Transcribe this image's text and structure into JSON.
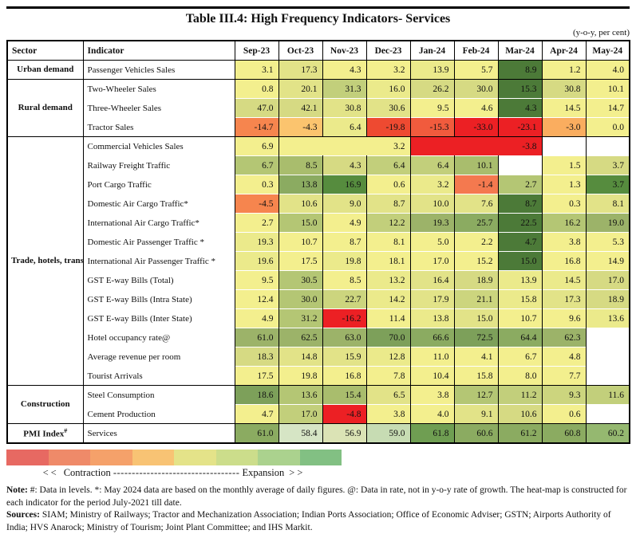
{
  "chart_data": {
    "type": "heatmap",
    "title": "Table III.4: High Frequency Indicators- Services",
    "unit": "(y-o-y, per cent)",
    "row_header_columns": [
      "Sector",
      "Indicator"
    ],
    "months": [
      "Sep-23",
      "Oct-23",
      "Nov-23",
      "Dec-23",
      "Jan-24",
      "Feb-24",
      "Mar-24",
      "Apr-24",
      "May-24"
    ],
    "palette": {
      "W": "#ffffff",
      "Y": "#f3ef8e",
      "Y2": "#ebea8b",
      "OL1": "#e2e388",
      "OL2": "#d6da83",
      "OL3": "#ccd57e",
      "OG1": "#c2cf7b",
      "OG2": "#b4c674",
      "OG3": "#a9bd6d",
      "GO": "#9cb369",
      "MG": "#8bab61",
      "MG2": "#95b870",
      "G1": "#7da05a",
      "G2": "#6f9e52",
      "SG": "#568c3e",
      "DG": "#4c7a38",
      "PG1": "#d6e5c5",
      "PG2": "#dbe3b5",
      "PG3": "#c7dcb3",
      "RED": "#ec2024",
      "OR1": "#ee4a31",
      "OR2": "#f15b3d",
      "ORG": "#f6854e",
      "SAL": "#f4794f",
      "AMB": "#fbc46e",
      "AMB2": "#faad5f"
    },
    "groups": [
      {
        "sector": {
          "name": "Urban demand"
        },
        "rows": [
          {
            "indicator": "Passenger Vehicles Sales",
            "cells": [
              [
                "3.1",
                "Y"
              ],
              [
                "17.3",
                "OL1"
              ],
              [
                "4.3",
                "Y"
              ],
              [
                "3.2",
                "Y"
              ],
              [
                "13.9",
                "Y2"
              ],
              [
                "5.7",
                "Y"
              ],
              [
                "8.9",
                "DG"
              ],
              [
                "1.2",
                "Y"
              ],
              [
                "4.0",
                "Y"
              ]
            ]
          }
        ]
      },
      {
        "sector": {
          "name": "Rural demand"
        },
        "rows": [
          {
            "indicator": "Two-Wheeler Sales",
            "cells": [
              [
                "0.8",
                "Y"
              ],
              [
                "20.1",
                "OL1"
              ],
              [
                "31.3",
                "OG1"
              ],
              [
                "16.0",
                "Y2"
              ],
              [
                "26.2",
                "OL2"
              ],
              [
                "30.0",
                "OL2"
              ],
              [
                "15.3",
                "DG"
              ],
              [
                "30.8",
                "OL2"
              ],
              [
                "10.1",
                "Y"
              ]
            ]
          },
          {
            "indicator": "Three-Wheeler Sales",
            "cells": [
              [
                "47.0",
                "OL2"
              ],
              [
                "42.1",
                "OL2"
              ],
              [
                "30.8",
                "OL1"
              ],
              [
                "30.6",
                "OL1"
              ],
              [
                "9.5",
                "Y"
              ],
              [
                "4.6",
                "Y"
              ],
              [
                "4.3",
                "DG"
              ],
              [
                "14.5",
                "Y"
              ],
              [
                "14.7",
                "Y"
              ]
            ]
          },
          {
            "indicator": "Tractor Sales",
            "cells": [
              [
                "-14.7",
                "ORG"
              ],
              [
                "-4.3",
                "AMB"
              ],
              [
                "6.4",
                "Y2"
              ],
              [
                "-19.8",
                "OR1"
              ],
              [
                "-15.3",
                "OR2"
              ],
              [
                "-33.0",
                "RED"
              ],
              [
                "-23.1",
                "RED"
              ],
              [
                "-3.0",
                "AMB2"
              ],
              [
                "0.0",
                "Y"
              ]
            ]
          }
        ]
      },
      {
        "sector": {
          "name": "Trade, hotels, transport, communication"
        },
        "rows": [
          {
            "indicator": "Commercial Vehicles Sales",
            "cells": [
              [
                "6.9",
                "Y"
              ],
              [
                "3.2",
                "Y",
                3
              ],
              [
                "-3.8",
                "RED",
                3
              ],
              [
                "",
                "W"
              ],
              [
                "",
                "W"
              ]
            ]
          },
          {
            "indicator": "Railway Freight Traffic",
            "cells": [
              [
                "6.7",
                "OG2"
              ],
              [
                "8.5",
                "OG3"
              ],
              [
                "4.3",
                "OL2"
              ],
              [
                "6.4",
                "OG1"
              ],
              [
                "6.4",
                "OG1"
              ],
              [
                "10.1",
                "OG3"
              ],
              [
                "",
                "W"
              ],
              [
                "1.5",
                "Y"
              ],
              [
                "3.7",
                "OL2"
              ]
            ]
          },
          {
            "indicator": "Port Cargo Traffic",
            "cells": [
              [
                "0.3",
                "Y"
              ],
              [
                "13.8",
                "MG"
              ],
              [
                "16.9",
                "SG"
              ],
              [
                "0.6",
                "Y"
              ],
              [
                "3.2",
                "Y2"
              ],
              [
                "-1.4",
                "SAL"
              ],
              [
                "2.7",
                "OG2"
              ],
              [
                "1.3",
                "Y"
              ],
              [
                "3.7",
                "SG"
              ]
            ]
          },
          {
            "indicator": "Domestic Air Cargo Traffic*",
            "cells": [
              [
                "-4.5",
                "ORG"
              ],
              [
                "10.6",
                "OL1"
              ],
              [
                "9.0",
                "OL1"
              ],
              [
                "8.7",
                "OL1"
              ],
              [
                "10.0",
                "OL1"
              ],
              [
                "7.6",
                "OL1"
              ],
              [
                "8.7",
                "DG"
              ],
              [
                "0.3",
                "Y"
              ],
              [
                "8.1",
                "OL1"
              ]
            ]
          },
          {
            "indicator": "International Air Cargo Traffic*",
            "cells": [
              [
                "2.7",
                "Y"
              ],
              [
                "15.0",
                "OG2"
              ],
              [
                "4.9",
                "Y"
              ],
              [
                "12.2",
                "OG1"
              ],
              [
                "19.3",
                "GO"
              ],
              [
                "25.7",
                "MG"
              ],
              [
                "22.5",
                "DG"
              ],
              [
                "16.2",
                "OG2"
              ],
              [
                "19.0",
                "GO"
              ]
            ]
          },
          {
            "indicator": "Domestic Air Passenger Traffic *",
            "cells": [
              [
                "19.3",
                "Y2"
              ],
              [
                "10.7",
                "Y"
              ],
              [
                "8.7",
                "Y"
              ],
              [
                "8.1",
                "Y"
              ],
              [
                "5.0",
                "Y"
              ],
              [
                "2.2",
                "Y"
              ],
              [
                "4.7",
                "DG"
              ],
              [
                "3.8",
                "Y"
              ],
              [
                "5.3",
                "Y"
              ]
            ]
          },
          {
            "indicator": "International Air Passenger Traffic *",
            "cells": [
              [
                "19.6",
                "Y2"
              ],
              [
                "17.5",
                "Y"
              ],
              [
                "19.8",
                "Y2"
              ],
              [
                "18.1",
                "Y"
              ],
              [
                "17.0",
                "Y"
              ],
              [
                "15.2",
                "Y"
              ],
              [
                "15.0",
                "DG"
              ],
              [
                "16.8",
                "Y"
              ],
              [
                "14.9",
                "Y"
              ]
            ]
          },
          {
            "indicator": "GST E-way Bills (Total)",
            "cells": [
              [
                "9.5",
                "Y"
              ],
              [
                "30.5",
                "OG2"
              ],
              [
                "8.5",
                "Y"
              ],
              [
                "13.2",
                "Y2"
              ],
              [
                "16.4",
                "OL1"
              ],
              [
                "18.9",
                "OL2"
              ],
              [
                "13.9",
                "Y2"
              ],
              [
                "14.5",
                "Y2"
              ],
              [
                "17.0",
                "OL2"
              ]
            ]
          },
          {
            "indicator": "GST E-way Bills (Intra State)",
            "cells": [
              [
                "12.4",
                "Y"
              ],
              [
                "30.0",
                "OG2"
              ],
              [
                "22.7",
                "OL3"
              ],
              [
                "14.2",
                "Y2"
              ],
              [
                "17.9",
                "OL1"
              ],
              [
                "21.1",
                "OL3"
              ],
              [
                "15.8",
                "Y2"
              ],
              [
                "17.3",
                "OL1"
              ],
              [
                "18.9",
                "OL2"
              ]
            ]
          },
          {
            "indicator": "GST E-way Bills (Inter State)",
            "cells": [
              [
                "4.9",
                "Y"
              ],
              [
                "31.2",
                "OG2"
              ],
              [
                "-16.2",
                "RED"
              ],
              [
                "11.4",
                "Y"
              ],
              [
                "13.8",
                "Y2"
              ],
              [
                "15.0",
                "OL1"
              ],
              [
                "10.7",
                "Y"
              ],
              [
                "9.6",
                "Y"
              ],
              [
                "13.6",
                "Y2"
              ]
            ]
          },
          {
            "indicator": "Hotel occupancy rate@",
            "cells": [
              [
                "61.0",
                "GO"
              ],
              [
                "62.5",
                "GO"
              ],
              [
                "63.0",
                "GO"
              ],
              [
                "70.0",
                "G1"
              ],
              [
                "66.6",
                "MG"
              ],
              [
                "72.5",
                "G1"
              ],
              [
                "64.4",
                "MG"
              ],
              [
                "62.3",
                "GO"
              ],
              [
                "",
                "W"
              ]
            ]
          },
          {
            "indicator": "Average revenue per room",
            "cells": [
              [
                "18.3",
                "OL2"
              ],
              [
                "14.8",
                "OL1"
              ],
              [
                "15.9",
                "OL1"
              ],
              [
                "12.8",
                "Y2"
              ],
              [
                "11.0",
                "Y"
              ],
              [
                "4.1",
                "Y"
              ],
              [
                "6.7",
                "Y"
              ],
              [
                "4.8",
                "Y"
              ],
              [
                "",
                "W"
              ]
            ]
          },
          {
            "indicator": "Tourist Arrivals",
            "cells": [
              [
                "17.5",
                "Y"
              ],
              [
                "19.8",
                "Y"
              ],
              [
                "16.8",
                "Y"
              ],
              [
                "7.8",
                "Y"
              ],
              [
                "10.4",
                "Y"
              ],
              [
                "15.8",
                "Y"
              ],
              [
                "8.0",
                "Y"
              ],
              [
                "7.7",
                "Y"
              ],
              [
                "",
                "W"
              ]
            ]
          }
        ]
      },
      {
        "sector": {
          "name": "Construction"
        },
        "rows": [
          {
            "indicator": "Steel Consumption",
            "cells": [
              [
                "18.6",
                "G1"
              ],
              [
                "13.6",
                "OG2"
              ],
              [
                "15.4",
                "OG3"
              ],
              [
                "6.5",
                "OL1"
              ],
              [
                "3.8",
                "Y"
              ],
              [
                "12.7",
                "OG2"
              ],
              [
                "11.2",
                "OG1"
              ],
              [
                "9.3",
                "OL3"
              ],
              [
                "11.6",
                "OG1"
              ]
            ]
          },
          {
            "indicator": "Cement Production",
            "cells": [
              [
                "4.7",
                "Y"
              ],
              [
                "17.0",
                "OG1"
              ],
              [
                "-4.8",
                "RED"
              ],
              [
                "3.8",
                "Y"
              ],
              [
                "4.0",
                "Y"
              ],
              [
                "9.1",
                "OL1"
              ],
              [
                "10.6",
                "OL2"
              ],
              [
                "0.6",
                "Y"
              ],
              [
                "",
                "W"
              ]
            ]
          }
        ]
      },
      {
        "sector": {
          "name": "PMI Index",
          "sup": "#"
        },
        "rows": [
          {
            "indicator": "Services",
            "cells": [
              [
                "61.0",
                "MG"
              ],
              [
                "58.4",
                "PG1"
              ],
              [
                "56.9",
                "PG2"
              ],
              [
                "59.0",
                "PG3"
              ],
              [
                "61.8",
                "G2"
              ],
              [
                "60.6",
                "MG"
              ],
              [
                "61.2",
                "MG"
              ],
              [
                "60.8",
                "MG"
              ],
              [
                "60.2",
                "MG2"
              ]
            ]
          }
        ]
      }
    ]
  },
  "legend": {
    "colors": [
      "#e76962",
      "#ef8a69",
      "#f5a16a",
      "#f8c374",
      "#e4e389",
      "#ccdd8b",
      "#abd28e",
      "#82c083"
    ],
    "left_arrows": "<<",
    "left_label": "Contraction",
    "dashes": "----------------------------------",
    "right_label": "Expansion",
    "right_arrows": ">>"
  },
  "notes": {
    "note_prefix": "Note:",
    "note_text": " #: Data in levels. *: May 2024 data are based on the monthly average of daily figures. @: Data in rate, not in y-o-y rate of growth. The heat-map is constructed for each indicator for the period July-2021 till date.",
    "sources_prefix": "Sources:",
    "sources_text": " SIAM; Ministry of Railways; Tractor and Mechanization Association; Indian Ports Association; Office of Economic Adviser; GSTN; Airports Authority of India; HVS Anarock; Ministry of Tourism; Joint Plant Committee; and IHS Markit."
  }
}
